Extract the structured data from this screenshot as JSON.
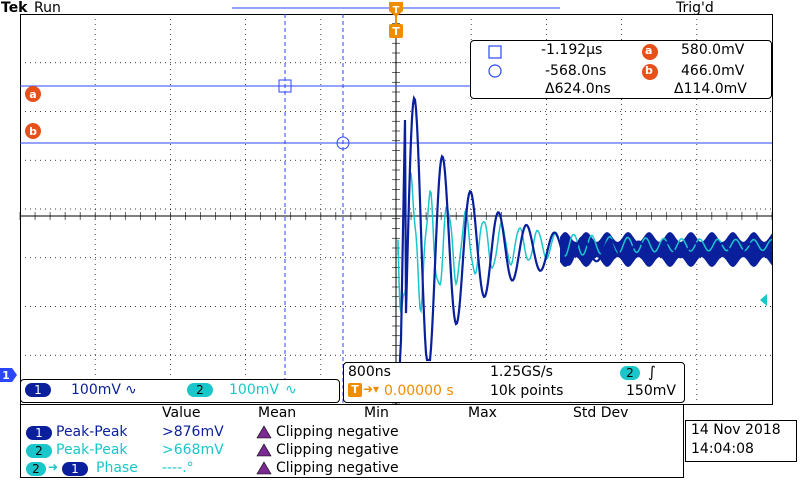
{
  "header": {
    "brand": "Tek",
    "run_state": "Run",
    "trigger_status": "Trig'd"
  },
  "markers": {
    "trigger_position": "T",
    "cursor_a": "a",
    "cursor_b": "b",
    "ch1_ground": "1"
  },
  "cursor_readout": {
    "square_time": "-1.192µs",
    "circle_time": "-568.0ns",
    "delta_time": "Δ624.0ns",
    "a_value": "580.0mV",
    "b_value": "466.0mV",
    "delta_value": "Δ114.0mV",
    "a_label": "a",
    "b_label": "b"
  },
  "channels": {
    "ch1_label": "1",
    "ch1_scale": "100mV",
    "ch1_coupling": "∿",
    "ch2_label": "2",
    "ch2_scale": "100mV",
    "ch2_coupling": "∿"
  },
  "timebase": {
    "time_per_div": "800ns",
    "sample_rate": "1.25GS/s",
    "trigger_channel": "2",
    "trigger_slope": "∫",
    "trigger_offset_prefix": "T",
    "trigger_offset": "0.00000 s",
    "record_length": "10k points",
    "trigger_level": "150mV"
  },
  "measurements": {
    "headers": [
      "Value",
      "Mean",
      "Min",
      "Max",
      "Std Dev"
    ],
    "rows": [
      {
        "source": "1",
        "name": "Peak-Peak",
        "value": ">876mV",
        "status": "Clipping negative"
      },
      {
        "source": "2",
        "name": "Peak-Peak",
        "value": ">668mV",
        "status": "Clipping negative"
      },
      {
        "source": "2",
        "source2": "1",
        "name": "Phase",
        "value": "----.°",
        "status": "Clipping negative"
      }
    ]
  },
  "datetime": {
    "date": "14 Nov 2018",
    "time": "14:04:08"
  },
  "colors": {
    "ch1": "#0a1f9c",
    "ch2": "#19c6c9",
    "trigger": "#f08c00",
    "cursor": "#2b46ff",
    "grid": "#000000"
  }
}
